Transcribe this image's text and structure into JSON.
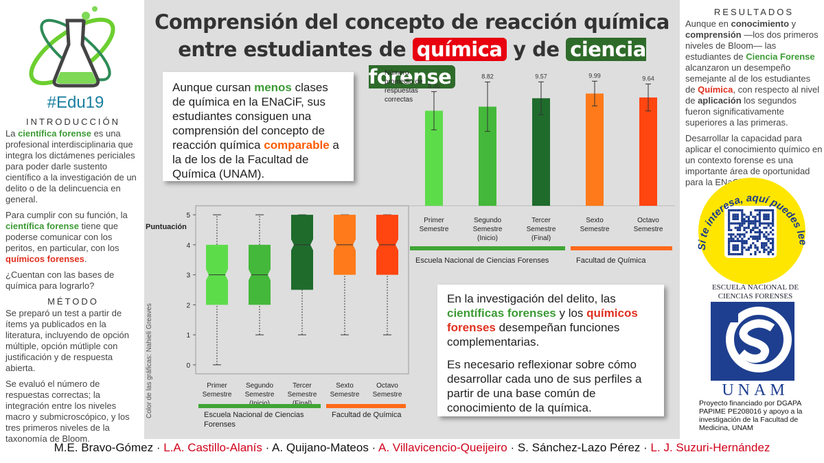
{
  "logo": {
    "hashtag": "#Edu19"
  },
  "title": {
    "line1": "Comprensión del concepto de reacción química",
    "line2": [
      "entre estudiantes de ",
      {
        "text": "química",
        "color": "#ffffff",
        "background": "#e8000f"
      },
      " y de ",
      {
        "text": "ciencia forense",
        "color": "#ffffff",
        "background": "#2e6b2a"
      }
    ]
  },
  "introduccion": {
    "heading": "INTRODUCCIÓN",
    "paragraphs": [
      [
        "La ",
        {
          "text": "científica forense",
          "color": "#3c9b35",
          "bold": true
        },
        " es una profesional interdisciplinaria que integra los dictámenes periciales para poder darle sustento científico a la investigación de un delito o de la delincuencia en general."
      ],
      [
        "Para cumplir con su función, la ",
        {
          "text": "científica forense",
          "color": "#3c9b35",
          "bold": true
        },
        " tiene que poderse comunicar con los peritos, en particular, con los ",
        {
          "text": "químicos forenses",
          "color": "#e0301e",
          "bold": true
        },
        "."
      ],
      [
        "¿Cuentan con las bases de química para lograrlo?"
      ]
    ]
  },
  "metodo": {
    "heading": "MÉTODO",
    "paragraphs": [
      [
        "Se preparó un test a partir de ítems ya publicados en la literatura, incluyendo de opción múltiple, opción mútliple con justificación y de respuesta abierta."
      ],
      [
        "Se evaluó el número de respuestas correctas; la integración entre los niveles macro y submicroscópico, y los tres primeros niveles de la taxonomía de Bloom."
      ]
    ]
  },
  "resultados": {
    "heading": "RESULTADOS",
    "paragraphs": [
      [
        "Aunque en ",
        {
          "text": "conocimiento",
          "bold": true
        },
        " y ",
        {
          "text": "comprensión",
          "bold": true
        },
        " —los dos primeros niveles de Bloom— las estudiantes de ",
        {
          "text": "Ciencia Forense",
          "color": "#3c9b35",
          "bold": true
        },
        " alcanzaron un desempeño semejante al de los estudiantes de ",
        {
          "text": "Química",
          "color": "#e0301e",
          "bold": true
        },
        ", con respecto al nivel de ",
        {
          "text": "aplicación",
          "bold": true
        },
        " los segundos fueron significativamente superiores a las primeras."
      ],
      [
        "Desarrollar la capacidad para aplicar el conocimiento químico en un contexto forense es una importante área de oportunidad para la ENaCiF."
      ]
    ]
  },
  "highlight_box": {
    "paragraphs": [
      [
        "Aunque cursan ",
        {
          "text": "menos",
          "color": "#3c9b35",
          "bold": true
        },
        " clases de química en la ENaCiF, sus estudiantes consiguen una comprensión del concepto de reacción química ",
        {
          "text": "comparable",
          "color": "#ff5a00",
          "bold": true
        },
        " a la de los de la Facultad de Química (UNAM)."
      ]
    ]
  },
  "conclusion_box": {
    "paragraphs": [
      [
        "En la investigación del delito, las ",
        {
          "text": "científicas forenses",
          "color": "#3c9b35",
          "bold": true
        },
        " y los ",
        {
          "text": "químicos forenses",
          "color": "#e0301e",
          "bold": true
        },
        " desempeñan funciones complementarias."
      ],
      [
        "Es necesario reflexionar sobre cómo desarrollar cada uno de sus perfiles a partir de una base común de conocimiento de la química."
      ]
    ]
  },
  "chart_data": [
    {
      "type": "bar",
      "y_label": "Número\npromedio de\nrespuestas\ncorrectas",
      "categories": [
        "Primer\nSemestre",
        "Segundo\nSemestre\n(Inicio)",
        "Tercer\nSemestre\n(Final)",
        "Sexto\nSemestre",
        "Octavo\nSemestre"
      ],
      "values": [
        8.46,
        8.82,
        9.57,
        9.99,
        9.64
      ],
      "errors": [
        1.7,
        2.2,
        1.46,
        1.1,
        1.2
      ],
      "colors": [
        "#5ddc4a",
        "#44b83a",
        "#1f6b2c",
        "#ff7a1a",
        "#ff4510"
      ],
      "ylim": [
        0,
        11.6
      ],
      "groups": [
        {
          "name": "Escuela Nacional de Ciencias Forenses",
          "color": "#3fa535",
          "size": 3
        },
        {
          "name": "Facultad de Química",
          "color": "#ff6a1a",
          "size": 2
        }
      ]
    },
    {
      "type": "box",
      "y_label": "Puntuación",
      "credit": "Color de las gráficas: Nahieli Greaves",
      "categories": [
        "Primer\nSemestre",
        "Segundo\nSemestre\n(Inicio)",
        "Tercer\nSemestre\n(Final)",
        "Sexto\nSemestre",
        "Octavo\nSemestre"
      ],
      "boxes": [
        {
          "min": 0,
          "q1": 2,
          "median": 3,
          "q3": 4,
          "max": 5
        },
        {
          "min": 1,
          "q1": 2,
          "median": 3,
          "q3": 4,
          "max": 5
        },
        {
          "min": 1,
          "q1": 2.5,
          "median": 4,
          "q3": 5,
          "max": 5
        },
        {
          "min": 1,
          "q1": 3,
          "median": 4,
          "q3": 5,
          "max": 5
        },
        {
          "min": 1,
          "q1": 3,
          "median": 4,
          "q3": 5,
          "max": 5
        }
      ],
      "colors": [
        "#5ddc4a",
        "#44b83a",
        "#1f6b2c",
        "#ff7a1a",
        "#ff4510"
      ],
      "ylim": [
        -0.3,
        5.3
      ],
      "yticks": [
        0,
        1,
        2,
        3,
        4,
        5
      ],
      "groups": [
        {
          "name": "Escuela Nacional de Ciencias\nForenses",
          "color": "#3fa535",
          "size": 3
        },
        {
          "name": "Facultad de Química",
          "color": "#ff6a1a",
          "size": 2
        }
      ]
    }
  ],
  "qr": {
    "caption": "Si te interesa, aquí puedes leer más..."
  },
  "institution": {
    "name_line1": "ESCUELA NACIONAL DE",
    "name_line2": "CIENCIAS FORENSES",
    "unam": "UNAM",
    "funding": "Proyecto financiado por DGAPA PAPIME PE208016 y apoyo a la investigación de la Facultad de Medicina, UNAM"
  },
  "authors": {
    "separator": "·",
    "names": [
      {
        "text": "M.E. Bravo-Gómez",
        "color": "#111111"
      },
      {
        "text": "L.A. Castillo-Alanís",
        "color": "#d0021b"
      },
      {
        "text": "A. Quijano-Mateos",
        "color": "#111111"
      },
      {
        "text": "A. Villavicencio-Queijeiro",
        "color": "#d0021b"
      },
      {
        "text": "S. Sánchez-Lazo Pérez",
        "color": "#111111"
      },
      {
        "text": "L. J. Suzuri-Hernández",
        "color": "#d0021b"
      }
    ]
  }
}
